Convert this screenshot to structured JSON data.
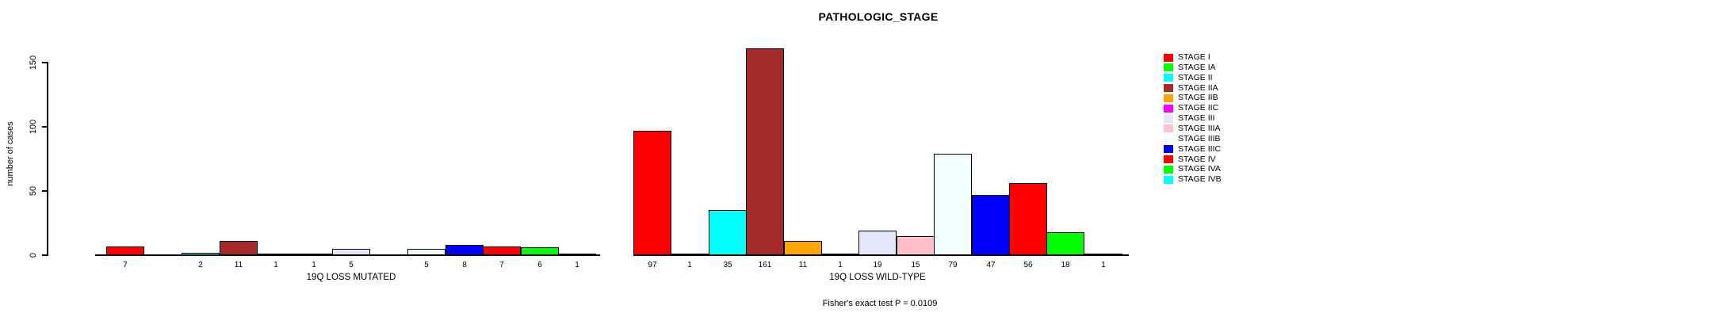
{
  "figure": {
    "title": "PATHOLOGIC_STAGE",
    "y_axis_label": "number of cases",
    "caption": "Fisher's exact test P = 0.0109"
  },
  "chart_data": {
    "type": "bar",
    "title": "PATHOLOGIC_STAGE",
    "ylabel": "number of cases",
    "ylim": [
      0,
      165
    ],
    "yticks": [
      0,
      50,
      100,
      150
    ],
    "grid": false,
    "legend_position": "right",
    "bar_count_labels_shown": true,
    "categories": [
      "STAGE I",
      "STAGE IA",
      "STAGE II",
      "STAGE IIA",
      "STAGE IIB",
      "STAGE IIC",
      "STAGE III",
      "STAGE IIIA",
      "STAGE IIIB",
      "STAGE IIIC",
      "STAGE IV",
      "STAGE IVA",
      "STAGE IVB"
    ],
    "colors": [
      "#FF0000",
      "#00FF00",
      "#00FFFF",
      "#A52A2A",
      "#FFA500",
      "#FF00FF",
      "#E6E6FA",
      "#FFC0CB",
      "#F0FFFF",
      "#0000FF",
      "#FF0000",
      "#00FF00",
      "#00FFFF"
    ],
    "series": [
      {
        "name": "19Q LOSS MUTATED",
        "values": [
          7,
          0,
          2,
          11,
          1,
          1,
          5,
          0,
          5,
          8,
          7,
          6,
          1
        ]
      },
      {
        "name": "19Q LOSS WILD-TYPE",
        "values": [
          97,
          1,
          35,
          161,
          11,
          1,
          19,
          15,
          79,
          47,
          56,
          18,
          1
        ]
      }
    ],
    "annotation": "Fisher's exact test P = 0.0109",
    "axis_color": "#000000",
    "bar_border_color": "#000000"
  }
}
